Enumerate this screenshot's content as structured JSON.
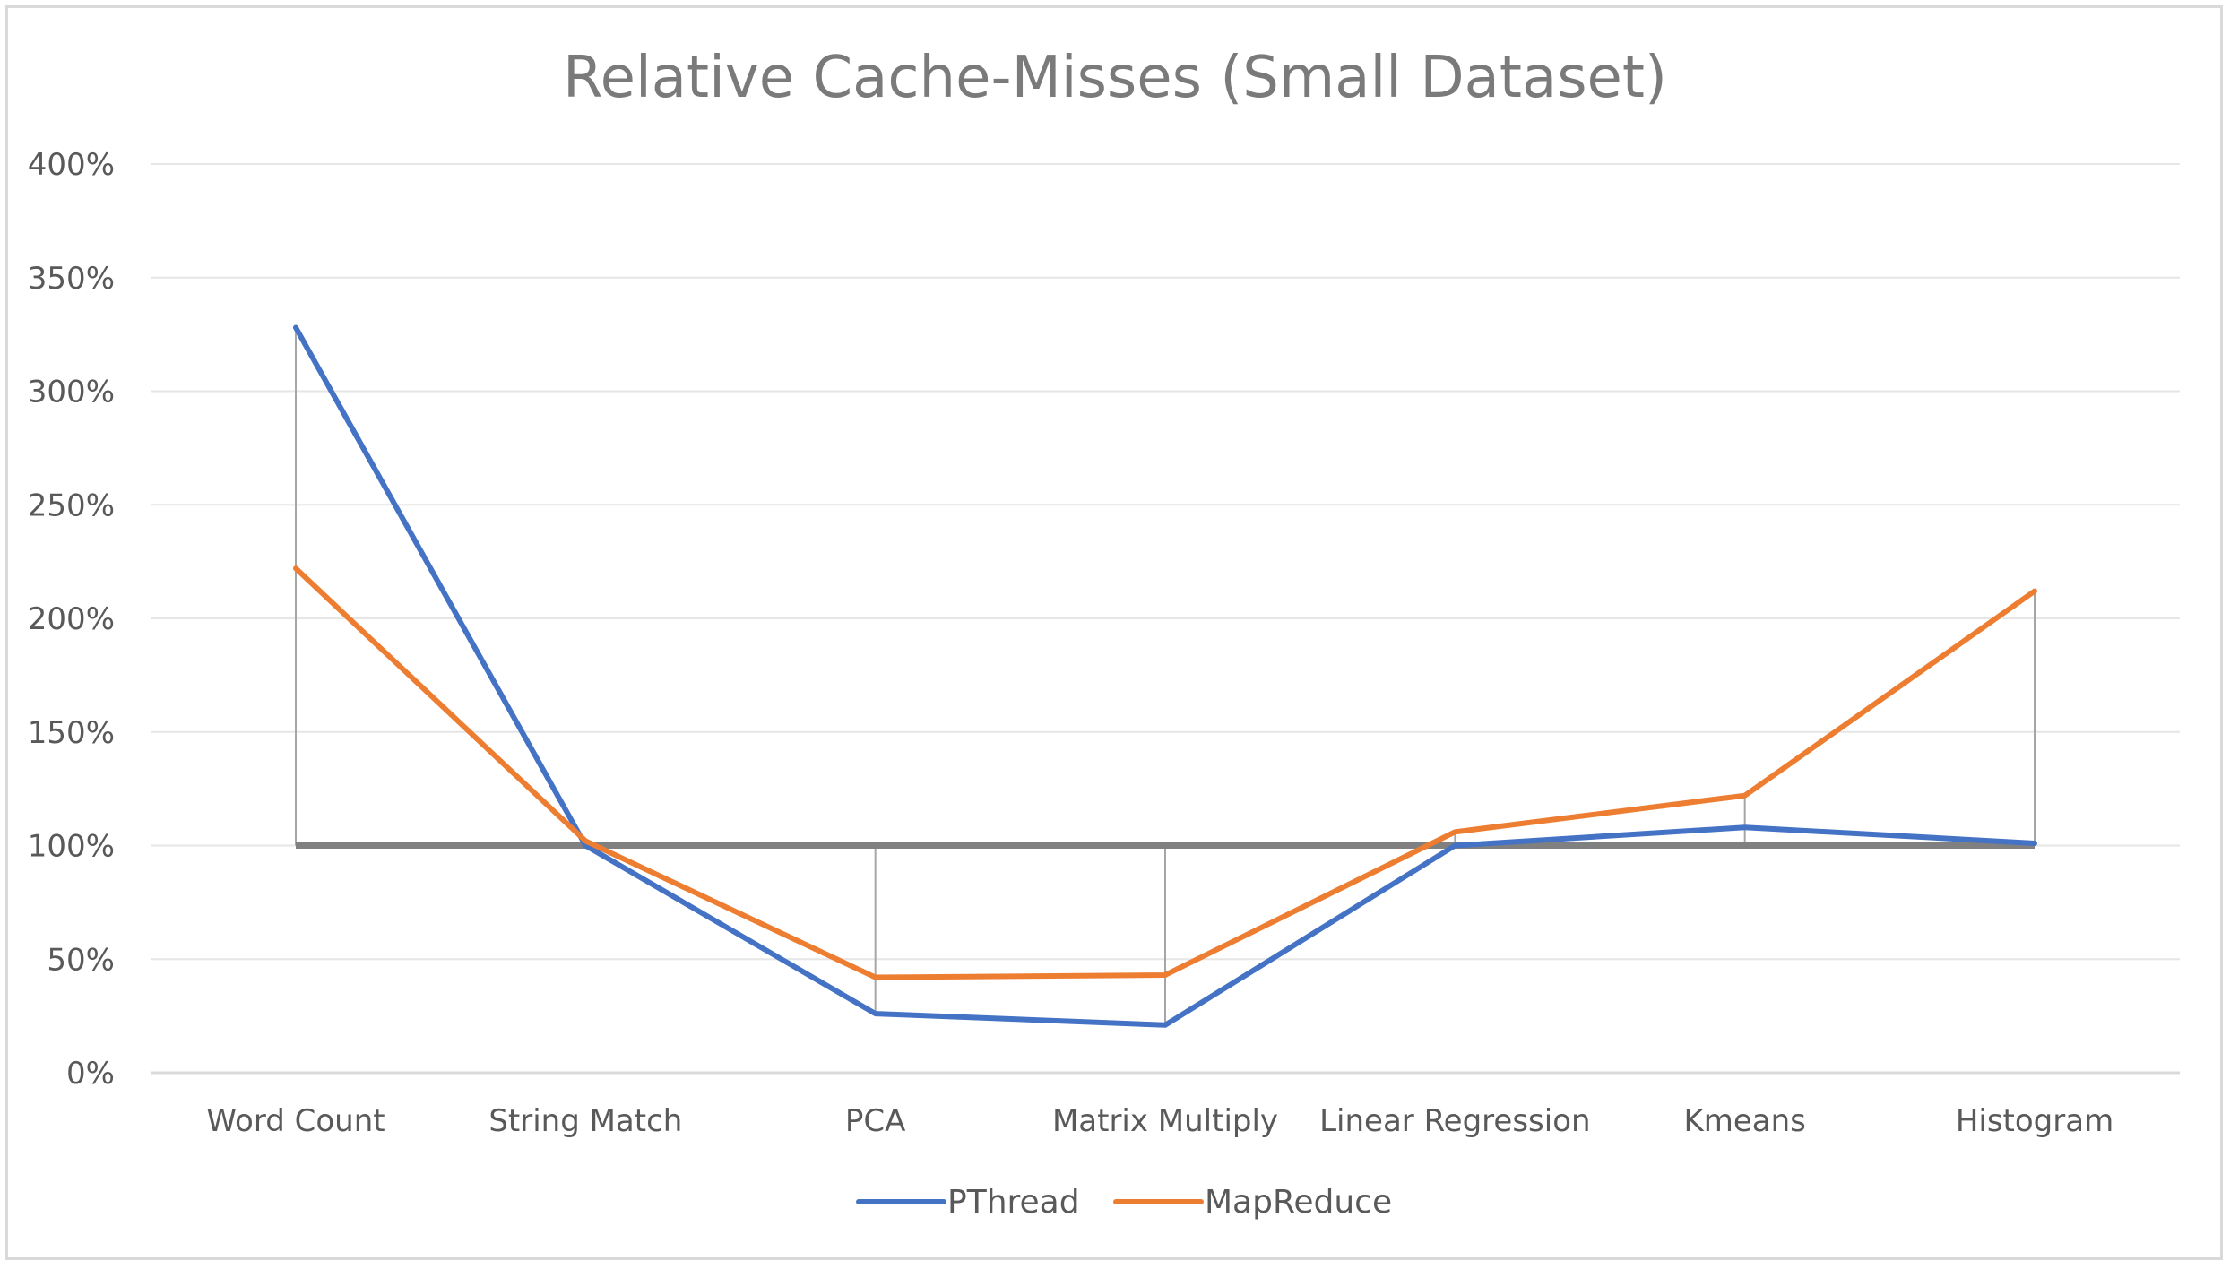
{
  "chart_data": {
    "type": "line",
    "title": "Relative Cache-Misses (Small Dataset)",
    "xlabel": "",
    "ylabel": "",
    "categories": [
      "Word Count",
      "String Match",
      "PCA",
      "Matrix Multiply",
      "Linear Regression",
      "Kmeans",
      "Histogram"
    ],
    "ylim": [
      0,
      400
    ],
    "yticks": [
      0,
      50,
      100,
      150,
      200,
      250,
      300,
      350,
      400
    ],
    "ytick_labels": [
      "0%",
      "50%",
      "100%",
      "150%",
      "200%",
      "250%",
      "300%",
      "350%",
      "400%"
    ],
    "grid": true,
    "legend_position": "bottom",
    "baseline": 100,
    "drop_lines": true,
    "series": [
      {
        "name": "PThread",
        "color": "#4472C4",
        "values": [
          328,
          100,
          26,
          21,
          100,
          108,
          101
        ]
      },
      {
        "name": "MapReduce",
        "color": "#ED7D31",
        "values": [
          222,
          102,
          42,
          43,
          106,
          122,
          212
        ]
      }
    ],
    "colors": {
      "baseline": "#808080",
      "grid": "#e6e6e6",
      "drop_line": "#a6a6a6",
      "axis": "#d9d9d9"
    }
  }
}
